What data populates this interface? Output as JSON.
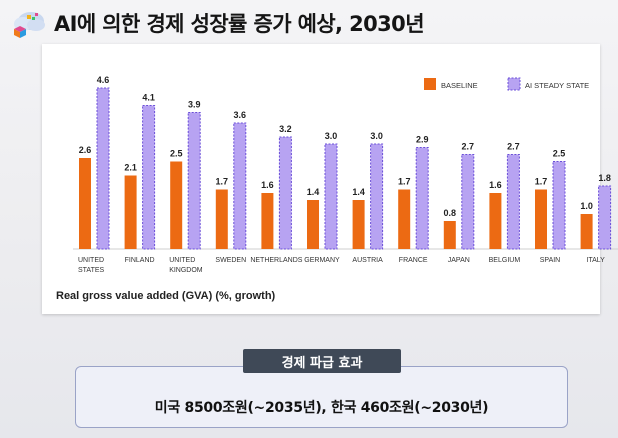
{
  "header": {
    "title": "AI에 의한 경제 성장률 증가 예상, 2030년",
    "logo_icon": "cloud-cube-logo-icon"
  },
  "chart_data": {
    "type": "bar",
    "title": "Real gross value added (GVA) (%, growth)",
    "categories": [
      [
        "UNITED",
        "STATES"
      ],
      [
        "FINLAND"
      ],
      [
        "UNITED",
        "KINGDOM"
      ],
      [
        "SWEDEN"
      ],
      [
        "NETHERLANDS"
      ],
      [
        "GERMANY"
      ],
      [
        "AUSTRIA"
      ],
      [
        "FRANCE"
      ],
      [
        "JAPAN"
      ],
      [
        "BELGIUM"
      ],
      [
        "SPAIN"
      ],
      [
        "ITALY"
      ]
    ],
    "series": [
      {
        "name": "BASELINE",
        "color": "#ec6a13",
        "values": [
          2.6,
          2.1,
          2.5,
          1.7,
          1.6,
          1.4,
          1.4,
          1.7,
          0.8,
          1.6,
          1.7,
          1.0
        ]
      },
      {
        "name": "AI STEADY STATE",
        "color": "#b7a3f2",
        "values": [
          4.6,
          4.1,
          3.9,
          3.6,
          3.2,
          3.0,
          3.0,
          2.9,
          2.7,
          2.7,
          2.5,
          1.8
        ]
      }
    ],
    "ylim": [
      0,
      4.6
    ],
    "legend_position": "top-right"
  },
  "effects": {
    "banner": "경제 파급 효과",
    "text": "미국 8500조원(~2035년), 한국 460조원(~2030년)"
  }
}
